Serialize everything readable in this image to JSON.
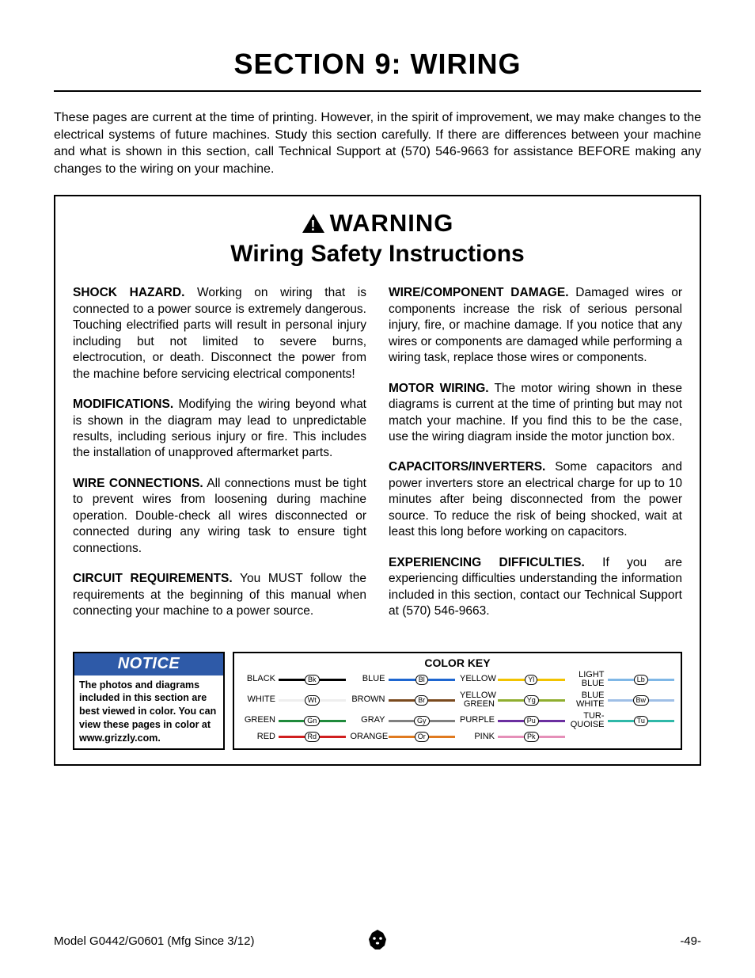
{
  "section_title": "SECTION 9: WIRING",
  "intro_text": "These pages are current at the time of printing. However, in the spirit of improvement, we may make changes to the electrical systems of future machines. Study this section carefully. If there are differences between your machine and what is shown in this section, call Technical Support at (570) 546-9663 for assistance BEFORE making any changes to the wiring on your machine.",
  "warning_label": "WARNING",
  "subtitle": "Wiring Safety Instructions",
  "left_col": [
    {
      "head": "SHOCK HAZARD.",
      "body": " Working on wiring that is connected to a power source is extremely dangerous. Touching electrified parts will result in personal injury including but not limited to severe burns, electrocution, or death. Disconnect the power from the machine before servicing electrical components!"
    },
    {
      "head": "MODIFICATIONS.",
      "body": " Modifying the wiring beyond what is shown in the diagram may lead to unpredictable results, including serious injury or fire. This includes the installation of unapproved aftermarket parts."
    },
    {
      "head": "WIRE CONNECTIONS.",
      "body": " All connections must be tight to prevent wires from loosening during machine operation. Double-check all wires disconnected or connected during any wiring task to ensure tight connections."
    },
    {
      "head": "CIRCUIT REQUIREMENTS.",
      "body": " You MUST follow the requirements at the beginning of this manual when connecting your machine to a power source."
    }
  ],
  "right_col": [
    {
      "head": "WIRE/COMPONENT DAMAGE.",
      "body": " Damaged wires or components increase the risk of serious personal injury, fire, or machine damage. If you notice that any wires or components are damaged while performing a wiring task, replace those wires or components."
    },
    {
      "head": "MOTOR WIRING.",
      "body": " The motor wiring shown in these diagrams is current at the time of printing but may not match your machine. If you find this to be the case, use the wiring diagram inside the motor junction box."
    },
    {
      "head": "CAPACITORS/INVERTERS.",
      "body": " Some capacitors and power inverters store an electrical charge for up to 10 minutes after being disconnected from the power source. To reduce the risk of being shocked, wait at least this long before working on capacitors."
    },
    {
      "head": "EXPERIENCING DIFFICULTIES.",
      "body": " If you are experiencing difficulties understanding the information included in this section, contact our Technical Support at (570) 546-9663."
    }
  ],
  "notice": {
    "head": "NOTICE",
    "body": "The photos and diagrams included in this section are best viewed in color. You can view these pages in color at www.grizzly.com.",
    "head_bg": "#2e5aa8",
    "head_color": "#ffffff"
  },
  "color_key": {
    "title": "COLOR KEY",
    "items": [
      {
        "label": "BLACK",
        "code": "Bk",
        "color": "#000000"
      },
      {
        "label": "BLUE",
        "code": "Bl",
        "color": "#1e66d0"
      },
      {
        "label": "YELLOW",
        "code": "Yl",
        "color": "#f2c300"
      },
      {
        "label": "LIGHT BLUE",
        "code": "Lb",
        "color": "#7fb7e6"
      },
      {
        "label": "WHITE",
        "code": "Wt",
        "color": "#eeeeee"
      },
      {
        "label": "BROWN",
        "code": "Br",
        "color": "#7a4a1e"
      },
      {
        "label": "YELLOW GREEN",
        "code": "Yg",
        "color": "#8fae2f"
      },
      {
        "label": "BLUE WHITE",
        "code": "Bw",
        "color": "#9fbfe6"
      },
      {
        "label": "GREEN",
        "code": "Gn",
        "color": "#1f8a3b"
      },
      {
        "label": "GRAY",
        "code": "Gy",
        "color": "#808080"
      },
      {
        "label": "PURPLE",
        "code": "Pu",
        "color": "#6b2fa0"
      },
      {
        "label": "TUR-QUOISE",
        "code": "Tu",
        "color": "#2fb8a8"
      },
      {
        "label": "RED",
        "code": "Rd",
        "color": "#d01f1f"
      },
      {
        "label": "ORANGE",
        "code": "Or",
        "color": "#e07a1f"
      },
      {
        "label": "PINK",
        "code": "Pk",
        "color": "#e58fb8"
      }
    ]
  },
  "footer": {
    "left": "Model G0442/G0601 (Mfg Since 3/12)",
    "right": "-49-"
  }
}
